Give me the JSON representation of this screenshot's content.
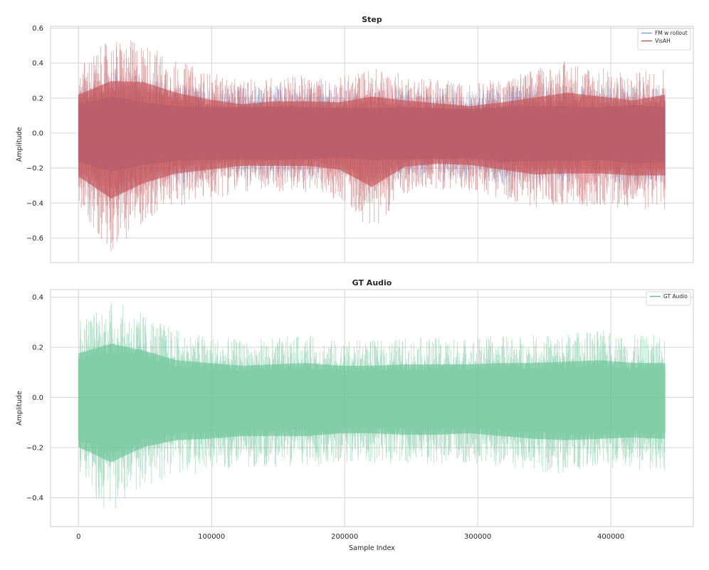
{
  "chart_data": [
    {
      "type": "line",
      "title": "Step",
      "ylabel": "Amplitude",
      "xlabel": "",
      "xlim": [
        -21000,
        462000
      ],
      "ylim": [
        -0.74,
        0.61
      ],
      "x_ticks": [
        0,
        100000,
        200000,
        300000,
        400000
      ],
      "x_tick_labels": [
        "",
        "",
        "",
        "",
        ""
      ],
      "y_ticks": [
        -0.6,
        -0.4,
        -0.2,
        0.0,
        0.2,
        0.4,
        0.6
      ],
      "y_tick_labels": [
        "−0.6",
        "−0.4",
        "−0.2",
        "0.0",
        "0.2",
        "0.4",
        "0.6"
      ],
      "grid": true,
      "legend": {
        "position": "top-right",
        "entries": [
          "FM w rollout",
          "VisAH"
        ]
      },
      "series": [
        {
          "name": "FM w rollout",
          "color": "#7b9fdc",
          "x_start": 0,
          "x_end": 441000,
          "envelope_step": 24500,
          "env_max": [
            0.3,
            0.38,
            0.32,
            0.28,
            0.27,
            0.27,
            0.28,
            0.27,
            0.26,
            0.26,
            0.27,
            0.26,
            0.25,
            0.27,
            0.28,
            0.28,
            0.27,
            0.29,
            0.27,
            0.29,
            0.28,
            0.26,
            0.28
          ],
          "env_min": [
            -0.3,
            -0.4,
            -0.33,
            -0.29,
            -0.28,
            -0.27,
            -0.28,
            -0.27,
            -0.26,
            -0.28,
            -0.27,
            -0.27,
            -0.26,
            -0.3,
            -0.29,
            -0.29,
            -0.28,
            -0.32,
            -0.3,
            -0.29,
            -0.29,
            -0.27,
            -0.28
          ]
        },
        {
          "name": "VisAH",
          "color": "#c44e52",
          "x_start": 0,
          "x_end": 441000,
          "envelope_step": 24500,
          "env_max": [
            0.4,
            0.54,
            0.53,
            0.42,
            0.35,
            0.3,
            0.33,
            0.33,
            0.32,
            0.38,
            0.34,
            0.31,
            0.28,
            0.32,
            0.37,
            0.42,
            0.38,
            0.34,
            0.4,
            0.38,
            0.48,
            0.46,
            0.3
          ],
          "env_min": [
            -0.45,
            -0.68,
            -0.52,
            -0.42,
            -0.38,
            -0.34,
            -0.34,
            -0.34,
            -0.38,
            -0.56,
            -0.35,
            -0.32,
            -0.33,
            -0.38,
            -0.43,
            -0.42,
            -0.42,
            -0.44,
            -0.44,
            -0.49,
            -0.46,
            -0.44,
            -0.3
          ]
        }
      ]
    },
    {
      "type": "line",
      "title": "GT Audio",
      "ylabel": "Amplitude",
      "xlabel": "Sample Index",
      "xlim": [
        -21000,
        462000
      ],
      "ylim": [
        -0.515,
        0.43
      ],
      "x_ticks": [
        0,
        100000,
        200000,
        300000,
        400000
      ],
      "x_tick_labels": [
        "0",
        "100000",
        "200000",
        "300000",
        "400000"
      ],
      "y_ticks": [
        -0.4,
        -0.2,
        0.0,
        0.2,
        0.4
      ],
      "y_tick_labels": [
        "−0.4",
        "−0.2",
        "0.0",
        "0.2",
        "0.4"
      ],
      "grid": true,
      "legend": {
        "position": "top-right",
        "entries": [
          "GT Audio"
        ]
      },
      "series": [
        {
          "name": "GT Audio",
          "color": "#66c294",
          "x_start": 0,
          "x_end": 441000,
          "envelope_step": 24500,
          "env_max": [
            0.32,
            0.39,
            0.34,
            0.27,
            0.25,
            0.23,
            0.24,
            0.25,
            0.23,
            0.23,
            0.24,
            0.24,
            0.24,
            0.25,
            0.25,
            0.26,
            0.27,
            0.25,
            0.25,
            0.3,
            0.27,
            0.26,
            0.2
          ],
          "env_min": [
            -0.36,
            -0.47,
            -0.36,
            -0.31,
            -0.3,
            -0.28,
            -0.28,
            -0.28,
            -0.26,
            -0.26,
            -0.27,
            -0.27,
            -0.26,
            -0.28,
            -0.3,
            -0.31,
            -0.3,
            -0.29,
            -0.3,
            -0.3,
            -0.3,
            -0.28,
            -0.25
          ]
        }
      ]
    }
  ]
}
